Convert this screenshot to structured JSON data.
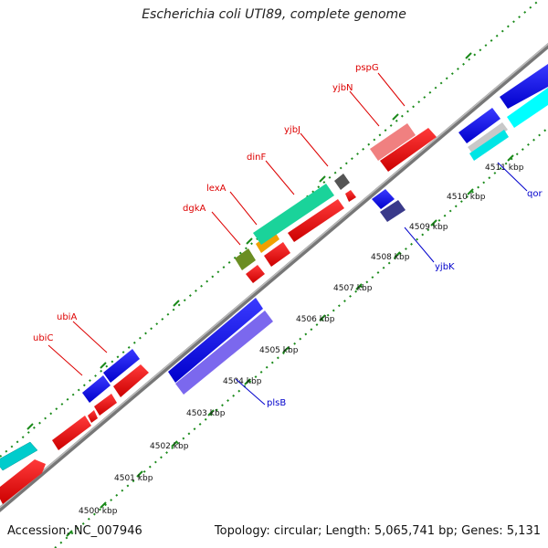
{
  "title": "Escherichia coli UTI89, complete genome",
  "footer": {
    "accession": "Accession: NC_007946",
    "stats": "Topology: circular; Length: 5,065,741 bp; Genes: 5,131"
  },
  "colors": {
    "forward_gene": "#0000ee",
    "reverse_cds": "#ee0000",
    "label_forward": "#dd0000",
    "label_reverse": "#0000cc",
    "backbone": "#888888",
    "ticks": "#1a8a1a"
  },
  "kbp_labels": [
    "4500 kbp",
    "4501 kbp",
    "4502 kbp",
    "4503 kbp",
    "4504 kbp",
    "4505 kbp",
    "4506 kbp",
    "4507 kbp",
    "4508 kbp",
    "4509 kbp",
    "4510 kbp",
    "4511 kbp"
  ],
  "gene_labels_top": [
    "ubiC",
    "ubiA",
    "dgkA",
    "lexA",
    "dinF",
    "yjbJ",
    "yjbN",
    "pspG"
  ],
  "gene_labels_bottom": [
    "plsB",
    "yjbK",
    "qor"
  ]
}
